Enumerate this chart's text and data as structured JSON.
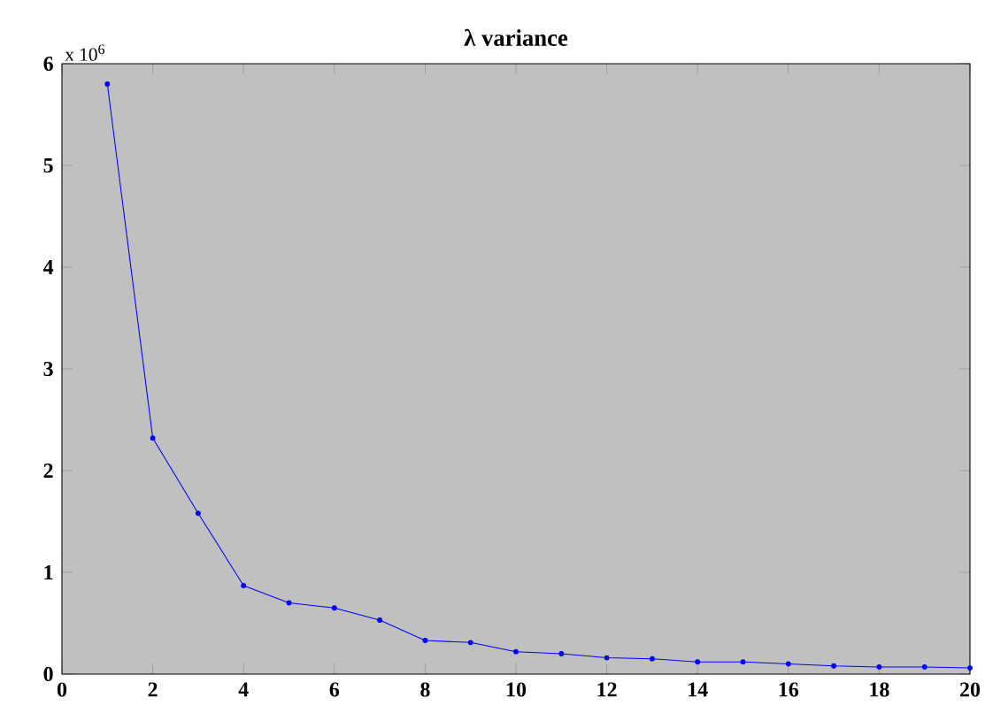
{
  "chart_data": {
    "type": "line",
    "title": "λ variance",
    "annotations": [
      "x 10$^{6}$"
    ],
    "x": [
      1,
      2,
      3,
      4,
      5,
      6,
      7,
      8,
      9,
      10,
      11,
      12,
      13,
      14,
      15,
      16,
      17,
      18,
      19,
      20
    ],
    "series": [
      {
        "color": "#0000ff",
        "values": [
          5.8,
          2.32,
          1.58,
          0.87,
          0.7,
          0.65,
          0.53,
          0.33,
          0.31,
          0.22,
          0.2,
          0.16,
          0.15,
          0.12,
          0.12,
          0.1,
          0.08,
          0.07,
          0.07,
          0.06
        ]
      }
    ],
    "xlim": [
      0,
      20
    ],
    "ylim": [
      0,
      6
    ],
    "xticks": [
      0,
      2,
      4,
      6,
      8,
      10,
      12,
      14,
      16,
      18,
      20
    ],
    "yticks": [
      0,
      1,
      2,
      3,
      4,
      5,
      6
    ],
    "marker": "circle",
    "line_style": "solid",
    "grid": false
  }
}
